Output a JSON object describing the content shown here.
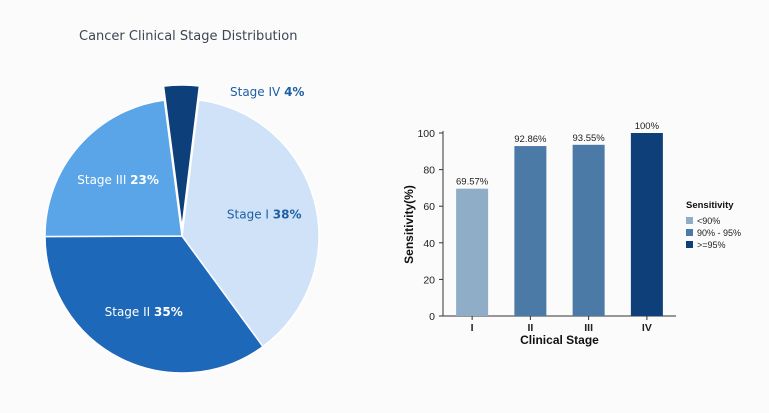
{
  "chart_data": [
    {
      "type": "pie",
      "title": "Cancer Clinical Stage Distribution",
      "slices": [
        {
          "name": "Stage I",
          "value": 38,
          "label_value": "38%",
          "color": "#cfe2f7",
          "text_color": "#1f5fa6"
        },
        {
          "name": "Stage II",
          "value": 35,
          "label_value": "35%",
          "color": "#1d68b8",
          "text_color": "#ffffff"
        },
        {
          "name": "Stage III",
          "value": 23,
          "label_value": "23%",
          "color": "#5aa5e8",
          "text_color": "#ffffff"
        },
        {
          "name": "Stage IV",
          "value": 4,
          "label_value": "4%",
          "color": "#0d3f7a",
          "text_color": "#1f5fa6",
          "exploded": true
        }
      ]
    },
    {
      "type": "bar",
      "categories": [
        "I",
        "II",
        "III",
        "IV"
      ],
      "values": [
        69.57,
        92.86,
        93.55,
        100
      ],
      "data_labels": [
        "69.57%",
        "92.86%",
        "93.55%",
        "100%"
      ],
      "bar_groups": [
        "<90%",
        "90% - 95%",
        "90% - 95%",
        ">=95%"
      ],
      "xlabel": "Clinical Stage",
      "ylabel": "Sensitivity(%)",
      "ylim": [
        0,
        100
      ],
      "yticks": [
        0,
        20,
        40,
        60,
        80,
        100
      ],
      "legend": {
        "title": "Sensitivity",
        "position": "right",
        "items": [
          {
            "label": "<90%",
            "color": "#8fadc7"
          },
          {
            "label": "90% - 95%",
            "color": "#4c7aa6"
          },
          {
            "label": ">=95%",
            "color": "#0f3f78"
          }
        ]
      }
    }
  ]
}
